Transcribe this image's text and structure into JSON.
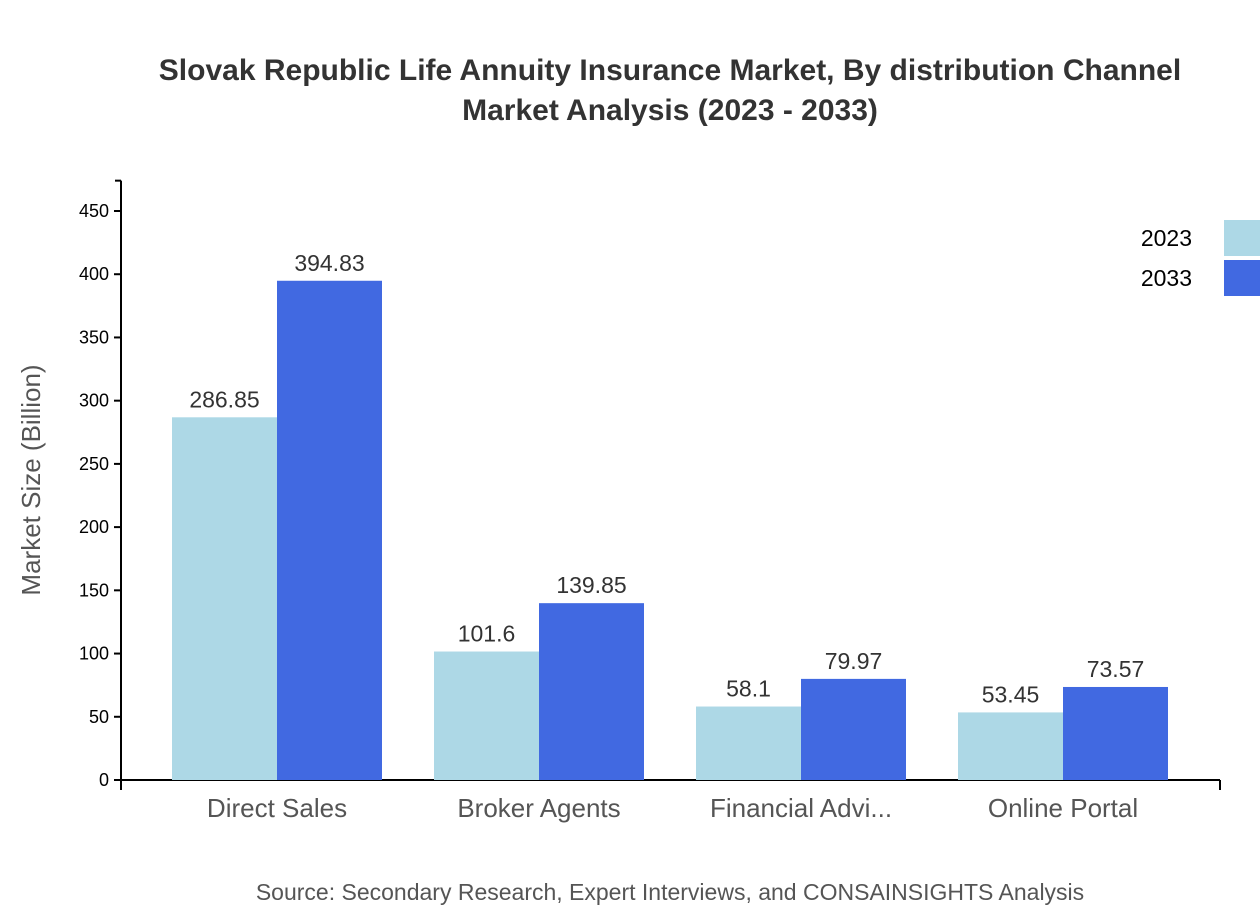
{
  "chart_data": {
    "type": "bar",
    "title_lines": [
      "Slovak Republic Life Annuity Insurance Market, By distribution Channel",
      "Market Analysis (2023 - 2033)"
    ],
    "xlabel": "",
    "ylabel": "Market Size (Billion)",
    "ylim": [
      0,
      474
    ],
    "yticks": [
      0,
      50,
      100,
      150,
      200,
      250,
      300,
      350,
      400,
      450
    ],
    "categories": [
      "Direct Sales",
      "Broker Agents",
      "Financial Advi...",
      "Online Portal"
    ],
    "series": [
      {
        "name": "2023",
        "color": "#add8e6",
        "values": [
          286.85,
          101.6,
          58.1,
          53.45
        ]
      },
      {
        "name": "2033",
        "color": "#4169e1",
        "values": [
          394.83,
          139.85,
          79.97,
          73.57
        ]
      }
    ],
    "legend_position": "top-right",
    "grid": false,
    "source": "Source: Secondary Research, Expert Interviews, and CONSAINSIGHTS Analysis"
  }
}
